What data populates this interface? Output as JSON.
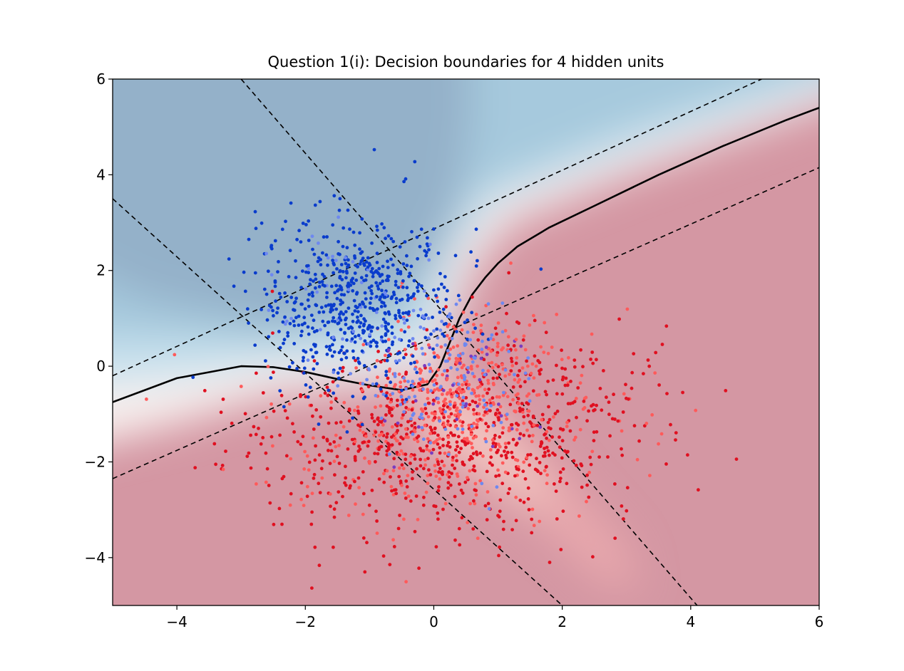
{
  "chart_data": {
    "type": "scatter",
    "title": "Question 1(i): Decision boundaries for 4 hidden units",
    "xlabel": "",
    "ylabel": "",
    "xlim": [
      -5,
      6
    ],
    "ylim": [
      -5,
      6
    ],
    "xticks": [
      -4,
      -2,
      0,
      2,
      4,
      6
    ],
    "yticks": [
      -4,
      -2,
      0,
      2,
      4,
      6
    ],
    "xtick_labels": [
      "−4",
      "−2",
      "0",
      "2",
      "4",
      "6"
    ],
    "ytick_labels": [
      "−4",
      "−2",
      "0",
      "2",
      "4",
      "6"
    ],
    "grid": false,
    "legend": "none",
    "class_colors": {
      "blue_dark": "#0a3ccc",
      "blue_light": "#6e88f0",
      "red_dark": "#e01020",
      "red_light": "#ff5a5a",
      "purple": "#7a3cc0"
    },
    "background_colors": {
      "blue_deep": "#94b1c9",
      "blue_mid": "#a6c9dd",
      "blue_light": "#c9e2ee",
      "neutral": "#f8f0ee",
      "red_light": "#f3c4c0",
      "red_mid": "#e9a9ad",
      "red_deep": "#d497a3"
    },
    "hidden_unit_lines": [
      {
        "x": [
          -5,
          6
        ],
        "y": [
          -0.2,
          6.55
        ]
      },
      {
        "x": [
          -5,
          6
        ],
        "y": [
          -2.35,
          4.15
        ]
      },
      {
        "x": [
          -3,
          4.1
        ],
        "y": [
          6,
          -5
        ]
      },
      {
        "x": [
          -5,
          2
        ],
        "y": [
          3.5,
          -5
        ]
      }
    ],
    "decision_boundary": {
      "x": [
        -5,
        -4,
        -3,
        -2.5,
        -2,
        -1.5,
        -1,
        -0.5,
        -0.1,
        0.1,
        0.25,
        0.4,
        0.6,
        0.8,
        1.0,
        1.3,
        1.8,
        2.5,
        3.5,
        4.5,
        5.5,
        6
      ],
      "y": [
        -0.75,
        -0.25,
        0,
        -0.02,
        -0.12,
        -0.27,
        -0.4,
        -0.5,
        -0.38,
        0,
        0.5,
        1.0,
        1.5,
        1.85,
        2.15,
        2.5,
        2.9,
        3.35,
        4.0,
        4.6,
        5.15,
        5.4
      ]
    },
    "class_a_cluster": {
      "center": [
        -1.2,
        1.3
      ],
      "spread": [
        0.75,
        0.9
      ],
      "count": 650
    },
    "class_a_near_points": {
      "center": [
        0.2,
        -0.2
      ],
      "spread": [
        0.6,
        0.9
      ],
      "count": 150
    },
    "class_b_cluster": {
      "center": [
        -0.2,
        -1.6
      ],
      "spread": [
        1.5,
        0.9
      ],
      "count": 800
    },
    "class_b_near_points": {
      "center": [
        0.4,
        -0.4
      ],
      "spread": [
        0.6,
        0.75
      ],
      "count": 280
    },
    "class_b_tail": {
      "center": [
        1.8,
        -0.8
      ],
      "spread": [
        1.1,
        1.0
      ],
      "count": 200
    }
  }
}
